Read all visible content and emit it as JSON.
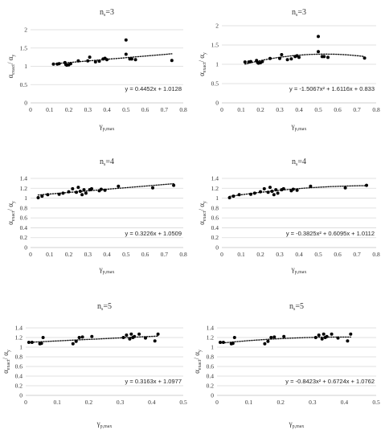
{
  "chart_data": [
    {
      "type": "scatter",
      "title": "n_s=3",
      "title_main": "n",
      "title_sub": "s",
      "title_tail": "=3",
      "ylabel_main": "α",
      "ylabel_sub": "exact",
      "ylabel_mid": "/ α",
      "ylabel_sub2": "y",
      "xlabel_main": "γ",
      "xlabel_sub": "p,max",
      "xlim": [
        0,
        0.8
      ],
      "ylim": [
        0,
        2
      ],
      "xticks": [
        "0",
        "0.1",
        "0.2",
        "0.3",
        "0.4",
        "0.5",
        "0.6",
        "0.7",
        "0.8"
      ],
      "yticks": [
        "0",
        "0.5",
        "1",
        "1.5",
        "2"
      ],
      "grid": true,
      "trendline": {
        "kind": "linear",
        "coef": [
          0.4452,
          1.0128
        ],
        "label": "y = 0.4452x + 1.0128"
      },
      "points": [
        [
          0.12,
          1.06
        ],
        [
          0.14,
          1.06
        ],
        [
          0.15,
          1.07
        ],
        [
          0.18,
          1.1
        ],
        [
          0.185,
          1.05
        ],
        [
          0.19,
          1.03
        ],
        [
          0.2,
          1.04
        ],
        [
          0.21,
          1.07
        ],
        [
          0.25,
          1.15
        ],
        [
          0.3,
          1.15
        ],
        [
          0.31,
          1.25
        ],
        [
          0.34,
          1.12
        ],
        [
          0.36,
          1.14
        ],
        [
          0.38,
          1.2
        ],
        [
          0.39,
          1.22
        ],
        [
          0.4,
          1.18
        ],
        [
          0.5,
          1.72
        ],
        [
          0.5,
          1.33
        ],
        [
          0.52,
          1.2
        ],
        [
          0.53,
          1.2
        ],
        [
          0.55,
          1.18
        ],
        [
          0.74,
          1.16
        ]
      ]
    },
    {
      "type": "scatter",
      "title": "n_s=3",
      "title_main": "n",
      "title_sub": "s",
      "title_tail": "=3",
      "ylabel_main": "α",
      "ylabel_sub": "exact",
      "ylabel_mid": "/ α",
      "ylabel_sub2": "y",
      "xlabel_main": "γ",
      "xlabel_sub": "p,max",
      "xlim": [
        0,
        0.8
      ],
      "ylim": [
        0,
        2
      ],
      "xticks": [
        "0",
        "0.1",
        "0.2",
        "0.3",
        "0.4",
        "0.5",
        "0.6",
        "0.7",
        "0.8"
      ],
      "yticks": [
        "0",
        "0.5",
        "1",
        "1.5",
        "2"
      ],
      "grid": true,
      "trendline": {
        "kind": "poly2",
        "coef": [
          -1.5067,
          1.6116,
          0.833
        ],
        "label": "y = -1.5067x² + 1.6116x + 0.833"
      },
      "points": [
        [
          0.12,
          1.06
        ],
        [
          0.14,
          1.06
        ],
        [
          0.15,
          1.07
        ],
        [
          0.18,
          1.1
        ],
        [
          0.185,
          1.05
        ],
        [
          0.19,
          1.03
        ],
        [
          0.2,
          1.04
        ],
        [
          0.21,
          1.07
        ],
        [
          0.25,
          1.15
        ],
        [
          0.3,
          1.15
        ],
        [
          0.31,
          1.25
        ],
        [
          0.34,
          1.12
        ],
        [
          0.36,
          1.14
        ],
        [
          0.38,
          1.2
        ],
        [
          0.39,
          1.22
        ],
        [
          0.4,
          1.18
        ],
        [
          0.5,
          1.72
        ],
        [
          0.5,
          1.33
        ],
        [
          0.52,
          1.2
        ],
        [
          0.53,
          1.2
        ],
        [
          0.55,
          1.18
        ],
        [
          0.74,
          1.16
        ]
      ]
    },
    {
      "type": "scatter",
      "title": "n_s=4",
      "title_main": "n",
      "title_sub": "s",
      "title_tail": "=4",
      "ylabel_main": "α",
      "ylabel_sub": "exact",
      "ylabel_mid": "/ α",
      "ylabel_sub2": "y",
      "xlabel_main": "γ",
      "xlabel_sub": "p,max",
      "xlim": [
        0,
        0.8
      ],
      "ylim": [
        0,
        1.4
      ],
      "xticks": [
        "0",
        "0.1",
        "0.2",
        "0.3",
        "0.4",
        "0.5",
        "0.6",
        "0.7",
        "0.8"
      ],
      "yticks": [
        "0",
        "0.2",
        "0.4",
        "0.6",
        "0.8",
        "1",
        "1.2",
        "1.4"
      ],
      "grid": true,
      "trendline": {
        "kind": "linear",
        "coef": [
          0.3226,
          1.0509
        ],
        "label": "y = 0.3226x + 1.0509"
      },
      "points": [
        [
          0.04,
          1.01
        ],
        [
          0.06,
          1.04
        ],
        [
          0.09,
          1.07
        ],
        [
          0.15,
          1.08
        ],
        [
          0.17,
          1.1
        ],
        [
          0.2,
          1.13
        ],
        [
          0.22,
          1.19
        ],
        [
          0.24,
          1.12
        ],
        [
          0.25,
          1.22
        ],
        [
          0.26,
          1.14
        ],
        [
          0.27,
          1.07
        ],
        [
          0.28,
          1.17
        ],
        [
          0.29,
          1.1
        ],
        [
          0.31,
          1.17
        ],
        [
          0.32,
          1.19
        ],
        [
          0.36,
          1.15
        ],
        [
          0.37,
          1.18
        ],
        [
          0.39,
          1.16
        ],
        [
          0.46,
          1.24
        ],
        [
          0.64,
          1.21
        ],
        [
          0.75,
          1.26
        ]
      ]
    },
    {
      "type": "scatter",
      "title": "n_s=4",
      "title_main": "n",
      "title_sub": "s",
      "title_tail": "=4",
      "ylabel_main": "α",
      "ylabel_sub": "exact",
      "ylabel_mid": "/ α",
      "ylabel_sub2": "y",
      "xlabel_main": "γ",
      "xlabel_sub": "p,max",
      "xlim": [
        0,
        0.8
      ],
      "ylim": [
        0,
        1.4
      ],
      "xticks": [
        "0",
        "0.1",
        "0.2",
        "0.3",
        "0.4",
        "0.5",
        "0.6",
        "0.7",
        "0.8"
      ],
      "yticks": [
        "0",
        "0.2",
        "0.4",
        "0.6",
        "0.8",
        "1",
        "1.2",
        "1.4"
      ],
      "grid": true,
      "trendline": {
        "kind": "poly2",
        "coef": [
          -0.3825,
          0.6095,
          1.0112
        ],
        "label": "y = -0.3825x² + 0.6095x + 1.0112"
      },
      "points": [
        [
          0.04,
          1.01
        ],
        [
          0.06,
          1.04
        ],
        [
          0.09,
          1.07
        ],
        [
          0.15,
          1.08
        ],
        [
          0.17,
          1.1
        ],
        [
          0.2,
          1.13
        ],
        [
          0.22,
          1.19
        ],
        [
          0.24,
          1.12
        ],
        [
          0.25,
          1.22
        ],
        [
          0.26,
          1.14
        ],
        [
          0.27,
          1.07
        ],
        [
          0.28,
          1.17
        ],
        [
          0.29,
          1.1
        ],
        [
          0.31,
          1.17
        ],
        [
          0.32,
          1.19
        ],
        [
          0.36,
          1.15
        ],
        [
          0.37,
          1.18
        ],
        [
          0.39,
          1.16
        ],
        [
          0.46,
          1.24
        ],
        [
          0.64,
          1.21
        ],
        [
          0.75,
          1.26
        ]
      ]
    },
    {
      "type": "scatter",
      "title": "n_s=5",
      "title_main": "n",
      "title_sub": "s",
      "title_tail": "=5",
      "ylabel_main": "α",
      "ylabel_sub": "exact",
      "ylabel_mid": "/ α",
      "ylabel_sub2": "y",
      "xlabel_main": "γ",
      "xlabel_sub": "p,max",
      "xlim": [
        0,
        0.5
      ],
      "ylim": [
        0,
        1.4
      ],
      "xticks": [
        "0",
        "0.1",
        "0.2",
        "0.3",
        "0.4",
        "0.5"
      ],
      "yticks": [
        "0",
        "0.2",
        "0.4",
        "0.6",
        "0.8",
        "1",
        "1.2",
        "1.4"
      ],
      "grid": true,
      "trendline": {
        "kind": "linear",
        "coef": [
          0.3163,
          1.0977
        ],
        "label": "y = 0.3163x + 1.0977"
      },
      "points": [
        [
          0.01,
          1.1
        ],
        [
          0.02,
          1.1
        ],
        [
          0.045,
          1.07
        ],
        [
          0.05,
          1.08
        ],
        [
          0.055,
          1.2
        ],
        [
          0.15,
          1.07
        ],
        [
          0.16,
          1.12
        ],
        [
          0.17,
          1.2
        ],
        [
          0.18,
          1.21
        ],
        [
          0.21,
          1.22
        ],
        [
          0.31,
          1.2
        ],
        [
          0.32,
          1.25
        ],
        [
          0.33,
          1.17
        ],
        [
          0.335,
          1.27
        ],
        [
          0.34,
          1.2
        ],
        [
          0.345,
          1.22
        ],
        [
          0.36,
          1.27
        ],
        [
          0.38,
          1.19
        ],
        [
          0.41,
          1.13
        ],
        [
          0.42,
          1.27
        ]
      ]
    },
    {
      "type": "scatter",
      "title": "n_s=5",
      "title_main": "n",
      "title_sub": "s",
      "title_tail": "=5",
      "ylabel_main": "α",
      "ylabel_sub": "exact",
      "ylabel_mid": "/ α",
      "ylabel_sub2": "y",
      "xlabel_main": "γ",
      "xlabel_sub": "p,max",
      "xlim": [
        0,
        0.5
      ],
      "ylim": [
        0,
        1.4
      ],
      "xticks": [
        "0",
        "0.1",
        "0.2",
        "0.3",
        "0.4",
        "0.5"
      ],
      "yticks": [
        "0",
        "0.2",
        "0.4",
        "0.6",
        "0.8",
        "1",
        "1.2",
        "1.4"
      ],
      "grid": true,
      "trendline": {
        "kind": "poly2",
        "coef": [
          -0.8423,
          0.6724,
          1.0762
        ],
        "label": "y = -0.8423x² + 0.6724x + 1.0762"
      },
      "points": [
        [
          0.01,
          1.1
        ],
        [
          0.02,
          1.1
        ],
        [
          0.045,
          1.07
        ],
        [
          0.05,
          1.08
        ],
        [
          0.055,
          1.2
        ],
        [
          0.15,
          1.07
        ],
        [
          0.16,
          1.12
        ],
        [
          0.17,
          1.2
        ],
        [
          0.18,
          1.21
        ],
        [
          0.21,
          1.22
        ],
        [
          0.31,
          1.2
        ],
        [
          0.32,
          1.25
        ],
        [
          0.33,
          1.17
        ],
        [
          0.335,
          1.27
        ],
        [
          0.34,
          1.2
        ],
        [
          0.345,
          1.22
        ],
        [
          0.36,
          1.27
        ],
        [
          0.38,
          1.19
        ],
        [
          0.41,
          1.13
        ],
        [
          0.42,
          1.27
        ]
      ]
    }
  ]
}
